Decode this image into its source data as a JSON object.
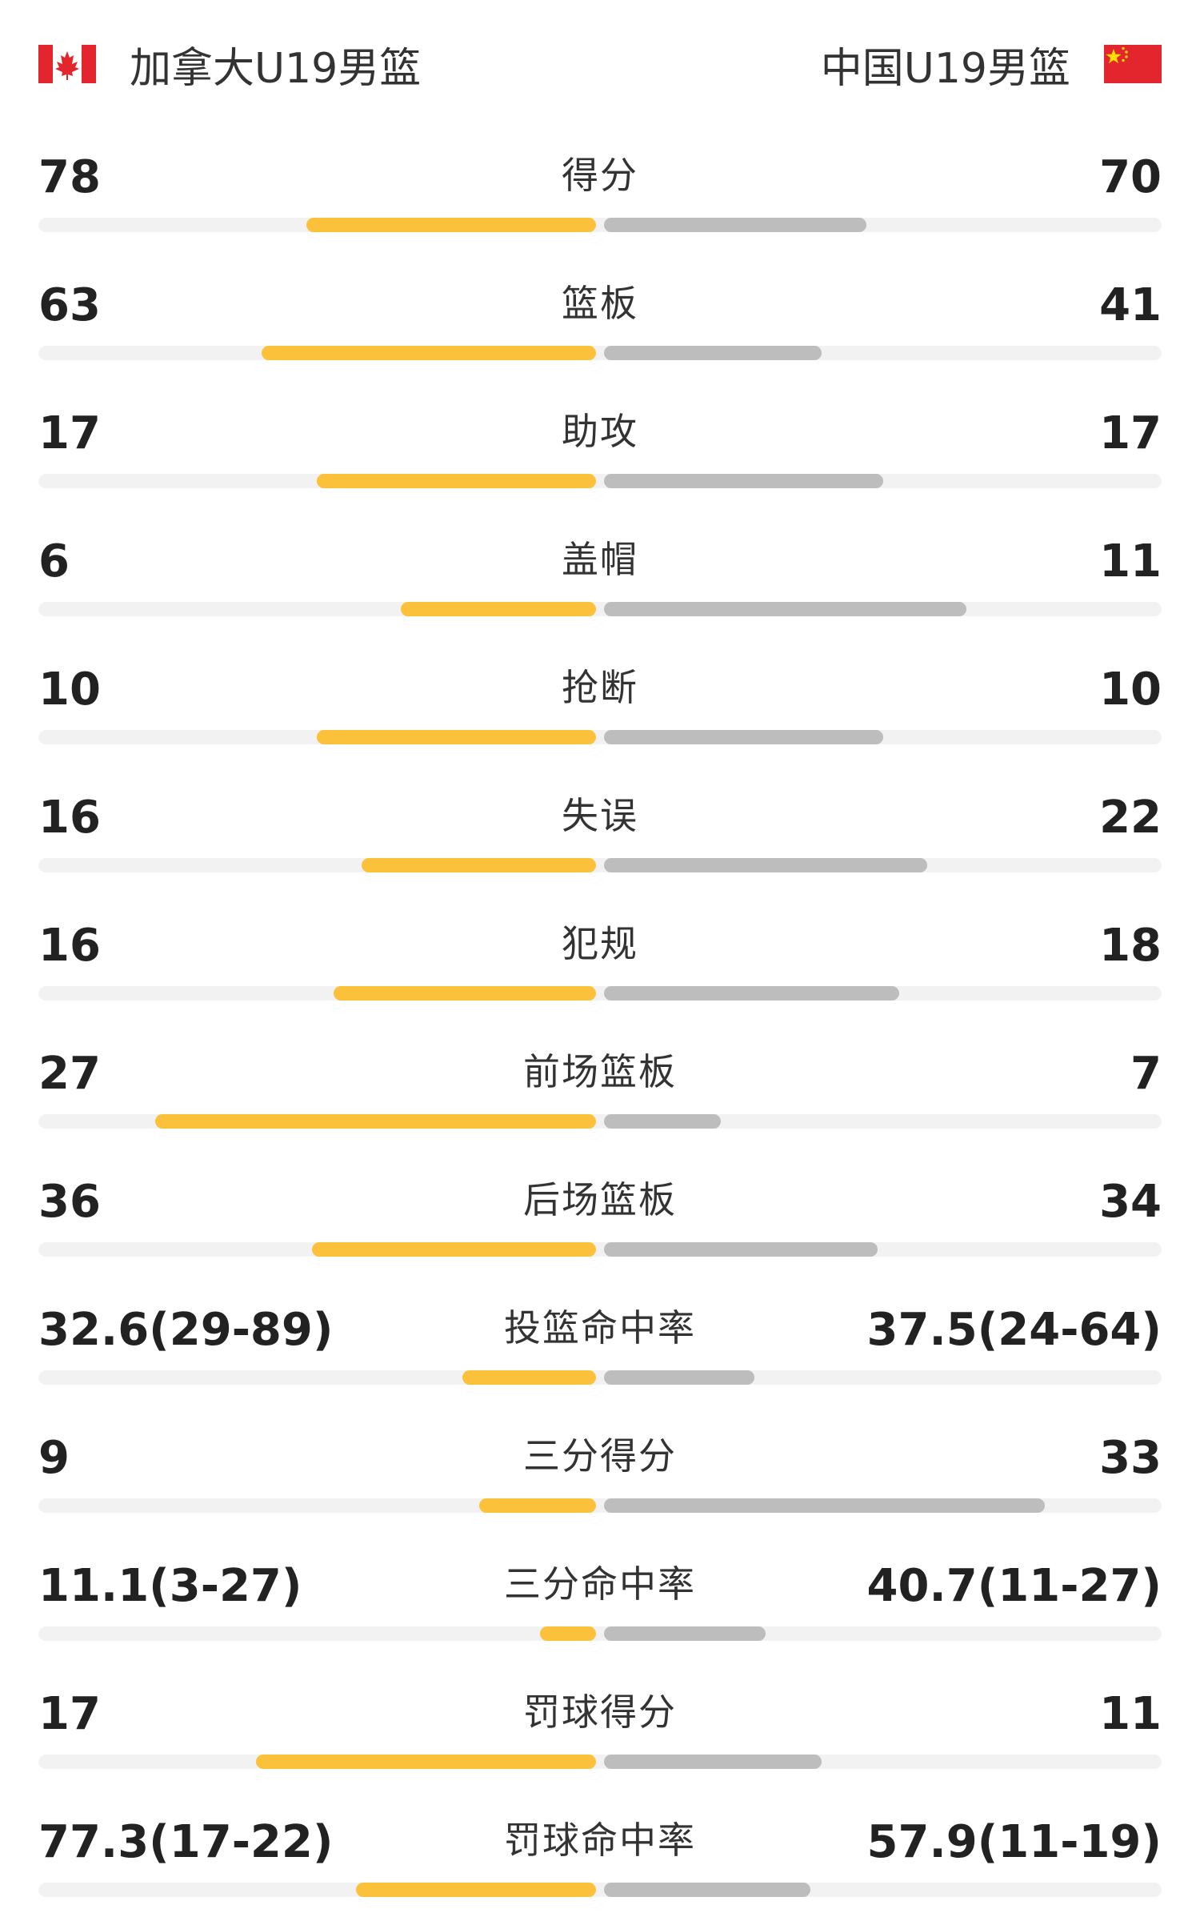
{
  "teams": {
    "left": {
      "name": "加拿大U19男篮",
      "flag": "canada-flag-icon",
      "color": "#fbc13a"
    },
    "right": {
      "name": "中国U19男篮",
      "flag": "china-flag-icon",
      "color": "#bdbdbd"
    }
  },
  "colors": {
    "left_bar": "#fbc13a",
    "right_bar": "#bdbdbd",
    "track": "#f2f2f2"
  },
  "stats": [
    {
      "label": "得分",
      "left": "78",
      "right": "70",
      "left_fill": 0.52,
      "right_fill": 0.47
    },
    {
      "label": "篮板",
      "left": "63",
      "right": "41",
      "left_fill": 0.6,
      "right_fill": 0.39
    },
    {
      "label": "助攻",
      "left": "17",
      "right": "17",
      "left_fill": 0.5,
      "right_fill": 0.5
    },
    {
      "label": "盖帽",
      "left": "6",
      "right": "11",
      "left_fill": 0.35,
      "right_fill": 0.65
    },
    {
      "label": "抢断",
      "left": "10",
      "right": "10",
      "left_fill": 0.5,
      "right_fill": 0.5
    },
    {
      "label": "失误",
      "left": "16",
      "right": "22",
      "left_fill": 0.42,
      "right_fill": 0.58
    },
    {
      "label": "犯规",
      "left": "16",
      "right": "18",
      "left_fill": 0.47,
      "right_fill": 0.53
    },
    {
      "label": "前场篮板",
      "left": "27",
      "right": "7",
      "left_fill": 0.79,
      "right_fill": 0.21
    },
    {
      "label": "后场篮板",
      "left": "36",
      "right": "34",
      "left_fill": 0.51,
      "right_fill": 0.49
    },
    {
      "label": "投篮命中率",
      "left": "32.6(29-89)",
      "right": "37.5(24-64)",
      "left_fill": 0.24,
      "right_fill": 0.27
    },
    {
      "label": "三分得分",
      "left": "9",
      "right": "33",
      "left_fill": 0.21,
      "right_fill": 0.79
    },
    {
      "label": "三分命中率",
      "left": "11.1(3-27)",
      "right": "40.7(11-27)",
      "left_fill": 0.1,
      "right_fill": 0.29
    },
    {
      "label": "罚球得分",
      "left": "17",
      "right": "11",
      "left_fill": 0.61,
      "right_fill": 0.39
    },
    {
      "label": "罚球命中率",
      "left": "77.3(17-22)",
      "right": "57.9(11-19)",
      "left_fill": 0.43,
      "right_fill": 0.37
    }
  ]
}
